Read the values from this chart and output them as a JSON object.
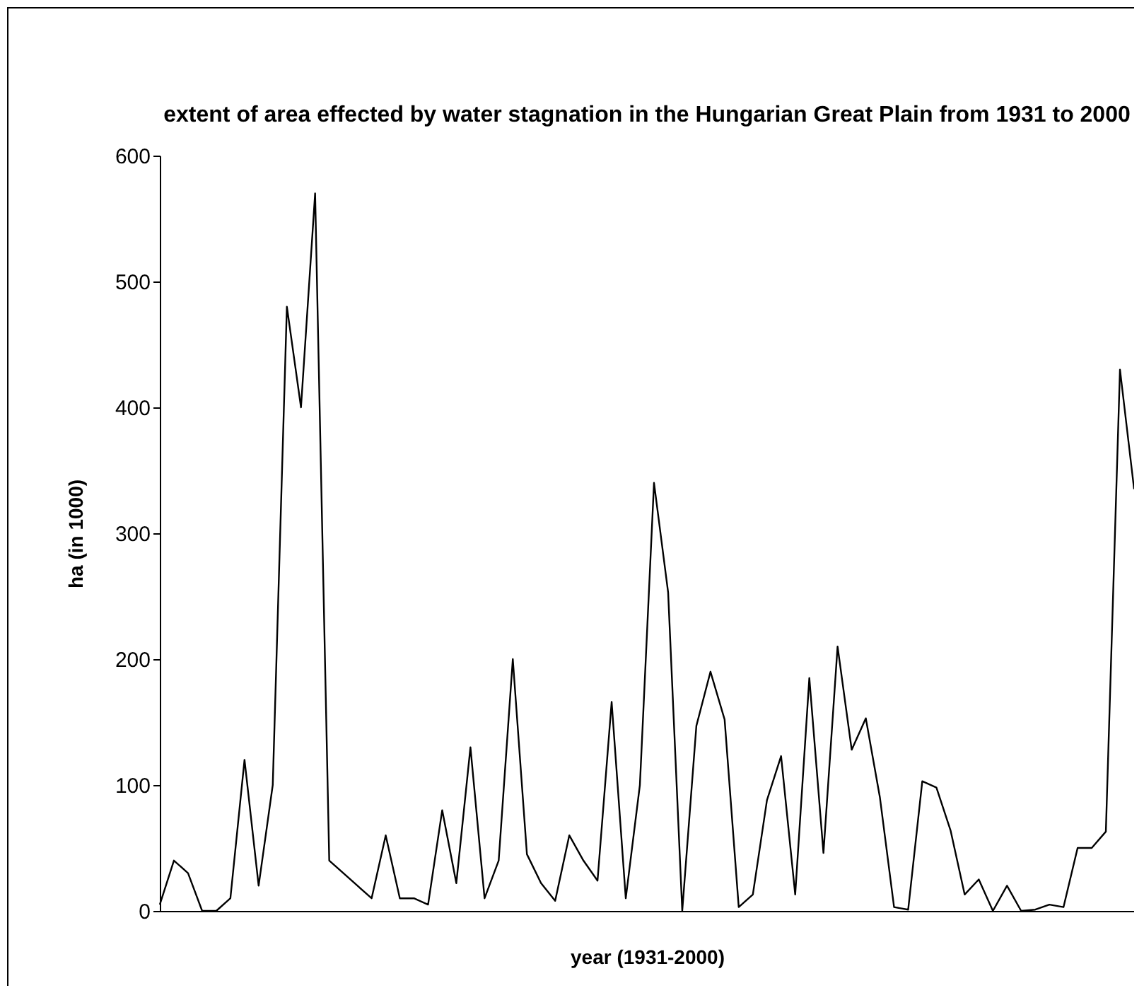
{
  "chart_data": {
    "type": "line",
    "title": "extent of area effected by water stagnation  in the\nHungarian Great Plain from 1931 to 2000",
    "xlabel": "year (1931-2000)",
    "ylabel": "ha (in 1000)",
    "categories": [
      null,
      null,
      null,
      null,
      null,
      null,
      null,
      null,
      null,
      null,
      null,
      null,
      null,
      null,
      null,
      null,
      null,
      null,
      null,
      null,
      null,
      null,
      null,
      null,
      null,
      null,
      null,
      null,
      null,
      null,
      null,
      null,
      null,
      null,
      null,
      null,
      null,
      null,
      null,
      null,
      null,
      null,
      null,
      null,
      null,
      null,
      null,
      null,
      null,
      null,
      null,
      null,
      null,
      null,
      null,
      null,
      null,
      null,
      null,
      null,
      null,
      null,
      null,
      null,
      null,
      null,
      null,
      null,
      null,
      null
    ],
    "series": [
      {
        "color": "#000000",
        "values": [
          5,
          40,
          30,
          0,
          0,
          10,
          120,
          20,
          100,
          480,
          400,
          570,
          40,
          30,
          20,
          10,
          60,
          10,
          10,
          5,
          80,
          22,
          130,
          10,
          40,
          200,
          45,
          22,
          8,
          60,
          40,
          24,
          166,
          10,
          100,
          340,
          253,
          0,
          147,
          190,
          152,
          3,
          13,
          88,
          123,
          13,
          185,
          46,
          210,
          128,
          153,
          90,
          3,
          1,
          103,
          98,
          64,
          13,
          25,
          0,
          20,
          0,
          1,
          5,
          3,
          50,
          50,
          63,
          430,
          335
        ]
      }
    ],
    "ylim": [
      0,
      600
    ],
    "yticks": [
      0,
      100,
      200,
      300,
      400,
      500,
      600
    ],
    "grid": false,
    "legend": false,
    "tick_labels": "y",
    "marker": "none",
    "line_style": "solid"
  }
}
